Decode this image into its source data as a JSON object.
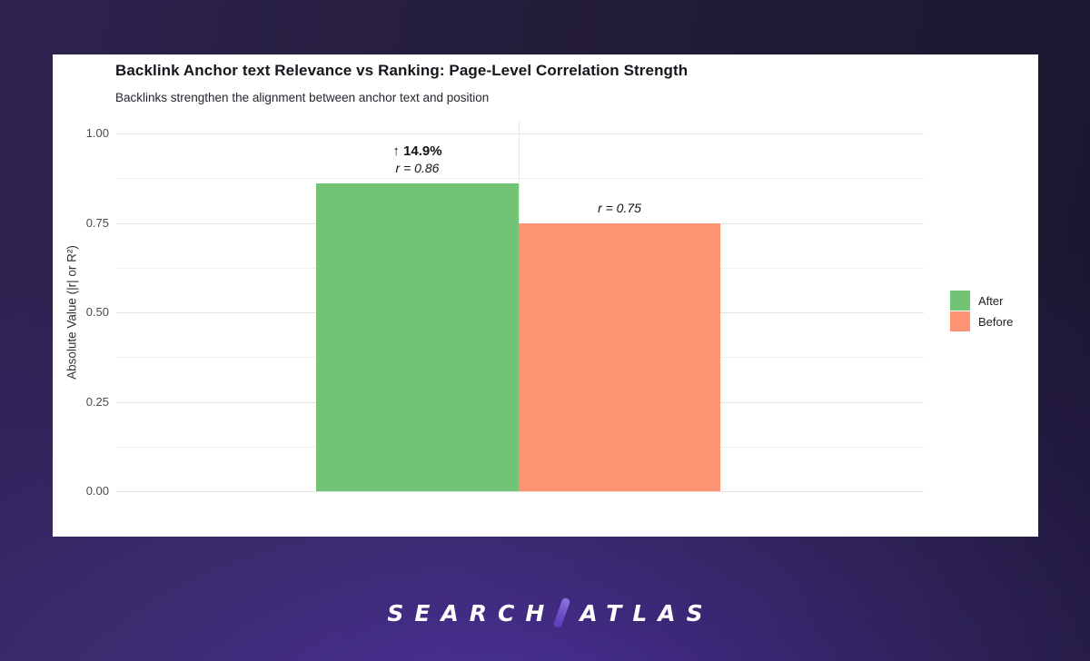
{
  "chart_data": {
    "type": "bar",
    "title": "Backlink Anchor text Relevance vs Ranking: Page-Level Correlation Strength",
    "subtitle": "Backlinks strengthen the alignment between anchor text and position",
    "ylabel": "Absolute Value (|r| or R²)",
    "ylim": [
      0,
      1
    ],
    "ytick_values": [
      0,
      0.25,
      0.5,
      0.75,
      1.0
    ],
    "ytick_labels": [
      "0.00",
      "0.25",
      "0.50",
      "0.75",
      "1.00"
    ],
    "yminor_values": [
      0.125,
      0.375,
      0.625,
      0.875
    ],
    "grid": true,
    "legend_position": "right",
    "categories": [
      "After",
      "Before"
    ],
    "series": [
      {
        "name": "After",
        "value": 0.86,
        "color": "#72c375",
        "annotations": [
          {
            "text": "↑ 14.9%",
            "style": "bold"
          },
          {
            "text": "r = 0.86",
            "style": "italic"
          }
        ]
      },
      {
        "name": "Before",
        "value": 0.75,
        "color": "#fc9372",
        "annotations": [
          {
            "text": "r = 0.75",
            "style": "italic"
          }
        ]
      }
    ],
    "legend": [
      {
        "label": "After",
        "color": "#72c375"
      },
      {
        "label": "Before",
        "color": "#fc9372"
      }
    ]
  },
  "branding": {
    "logo_left": "SEARCH",
    "logo_right": "ATLAS",
    "logo_slash_color": "#7a5ed6",
    "background_purple": "#4e34a8",
    "background_dark": "#241d3a"
  }
}
